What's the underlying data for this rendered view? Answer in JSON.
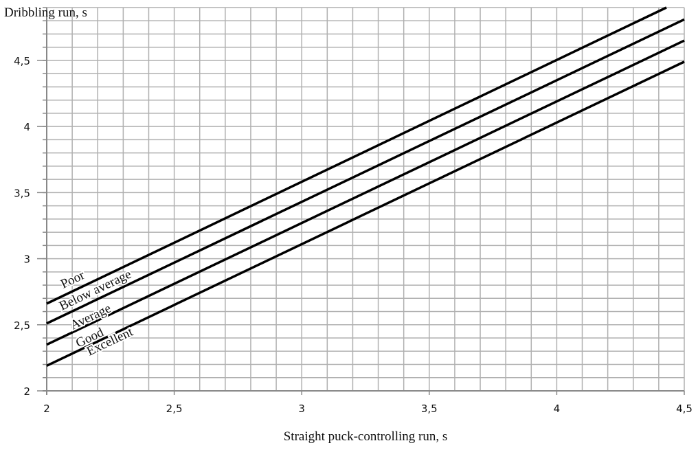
{
  "chart_data": {
    "type": "line",
    "title": "",
    "xlabel": "Straight puck-controlling run, s",
    "ylabel": "Dribbling run, s",
    "xlim": [
      2,
      4.5
    ],
    "ylim": [
      2,
      4.9
    ],
    "grid": true,
    "x_ticks": [
      "2",
      "2,5",
      "3",
      "3,5",
      "4",
      "4,5"
    ],
    "x_tick_values": [
      2,
      2.5,
      3,
      3.5,
      4,
      4.5
    ],
    "y_ticks": [
      "2",
      "2,5",
      "3",
      "3,5",
      "4",
      "4,5"
    ],
    "y_tick_values": [
      2,
      2.5,
      3,
      3.5,
      4,
      4.5
    ],
    "series": [
      {
        "name": "Poor",
        "x": [
          2,
          4.43
        ],
        "y": [
          2.66,
          4.9
        ]
      },
      {
        "name": "Below average",
        "x": [
          2,
          4.5
        ],
        "y": [
          2.51,
          4.81
        ]
      },
      {
        "name": "Average",
        "x": [
          2,
          4.5
        ],
        "y": [
          2.35,
          4.65
        ]
      },
      {
        "name": "Good",
        "x": [
          2,
          4.5
        ],
        "y": [
          2.19,
          4.49
        ]
      }
    ],
    "zone_labels": [
      "Poor",
      "Below average",
      "Average",
      "Good",
      "Excellent"
    ],
    "colors": {
      "line": "#000000",
      "grid": "#b0b0b0",
      "axis": "#888888"
    }
  }
}
